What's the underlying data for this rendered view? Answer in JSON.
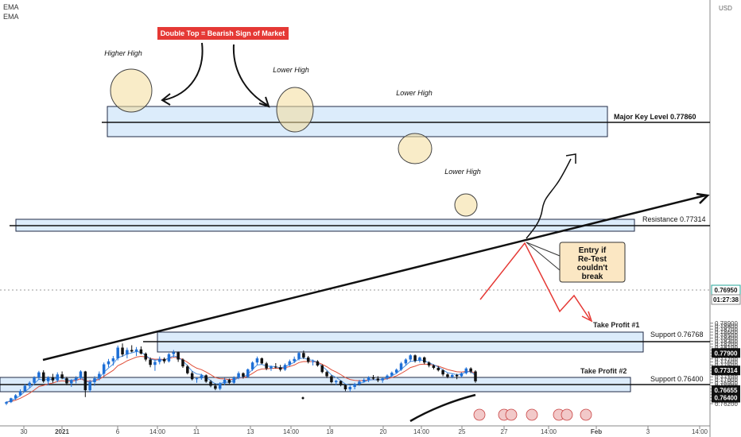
{
  "indicators": [
    "EMA",
    "EMA"
  ],
  "currency": "USD",
  "chart_data": {
    "type": "candlestick",
    "instrument_quote_currency": "USD",
    "x_ticks": [
      "30",
      "2021",
      "6",
      "14:00",
      "11",
      "13",
      "14:00",
      "18",
      "20",
      "14:00",
      "25",
      "27",
      "14:00",
      "Feb",
      "3",
      "14:00"
    ],
    "y_ticks": [
      "0.76200",
      "0.76300",
      "0.76400",
      "0.76500",
      "0.76600",
      "0.76700",
      "0.76800",
      "0.76900",
      "0.77000",
      "0.77100",
      "0.77200",
      "0.77300",
      "0.77400",
      "0.77500",
      "0.77600",
      "0.77700",
      "0.77800",
      "0.77900",
      "0.78000",
      "0.78100",
      "0.78200",
      "0.78300",
      "0.78400",
      "0.78500",
      "0.78600",
      "0.78700",
      "0.78800",
      "0.78900"
    ],
    "ylim": [
      0.7615,
      0.7893
    ],
    "price_tags": [
      {
        "label": "0.77900",
        "price": 0.779,
        "style": "dark"
      },
      {
        "label": "0.77314",
        "price": 0.77314,
        "style": "dark"
      },
      {
        "label": "0.76950",
        "price": 0.7695,
        "style": "current"
      },
      {
        "label": "01:27:38",
        "price": 0.7688,
        "style": "countdown"
      },
      {
        "label": "0.76655",
        "price": 0.76655,
        "style": "dark"
      },
      {
        "label": "0.76400",
        "price": 0.764,
        "style": "dark"
      }
    ],
    "candles": [
      [
        0.762,
        0.7628,
        0.7615,
        0.7625
      ],
      [
        0.7625,
        0.764,
        0.7622,
        0.7638
      ],
      [
        0.7638,
        0.7652,
        0.7632,
        0.7648
      ],
      [
        0.7648,
        0.7668,
        0.7645,
        0.7662
      ],
      [
        0.7662,
        0.7685,
        0.7658,
        0.768
      ],
      [
        0.768,
        0.7695,
        0.7672,
        0.769
      ],
      [
        0.769,
        0.7712,
        0.7686,
        0.7708
      ],
      [
        0.7708,
        0.773,
        0.77,
        0.7725
      ],
      [
        0.7725,
        0.7732,
        0.769,
        0.7695
      ],
      [
        0.7695,
        0.7712,
        0.7682,
        0.7708
      ],
      [
        0.7708,
        0.772,
        0.769,
        0.7698
      ],
      [
        0.7698,
        0.7725,
        0.7692,
        0.7718
      ],
      [
        0.7718,
        0.7728,
        0.7702,
        0.7705
      ],
      [
        0.7705,
        0.771,
        0.7682,
        0.7688
      ],
      [
        0.7688,
        0.7702,
        0.7676,
        0.7698
      ],
      [
        0.7698,
        0.7712,
        0.7688,
        0.7706
      ],
      [
        0.7706,
        0.7732,
        0.77,
        0.7728
      ],
      [
        0.7728,
        0.773,
        0.7642,
        0.7665
      ],
      [
        0.7665,
        0.77,
        0.7658,
        0.7692
      ],
      [
        0.7692,
        0.7712,
        0.768,
        0.7705
      ],
      [
        0.7705,
        0.7728,
        0.7698,
        0.772
      ],
      [
        0.772,
        0.7758,
        0.7712,
        0.7752
      ],
      [
        0.7752,
        0.777,
        0.7742,
        0.7762
      ],
      [
        0.7762,
        0.778,
        0.7748,
        0.7772
      ],
      [
        0.7772,
        0.7815,
        0.7765,
        0.7808
      ],
      [
        0.7808,
        0.7822,
        0.7778,
        0.7785
      ],
      [
        0.7785,
        0.7808,
        0.7772,
        0.78
      ],
      [
        0.78,
        0.7816,
        0.7792,
        0.7795
      ],
      [
        0.7795,
        0.781,
        0.778,
        0.7802
      ],
      [
        0.7802,
        0.7812,
        0.7785,
        0.7788
      ],
      [
        0.7788,
        0.7792,
        0.7762,
        0.7768
      ],
      [
        0.7768,
        0.7775,
        0.7742,
        0.775
      ],
      [
        0.775,
        0.7768,
        0.773,
        0.776
      ],
      [
        0.776,
        0.7778,
        0.7752,
        0.777
      ],
      [
        0.777,
        0.7775,
        0.7755,
        0.7762
      ],
      [
        0.7762,
        0.779,
        0.7758,
        0.7786
      ],
      [
        0.7786,
        0.78,
        0.7775,
        0.7792
      ],
      [
        0.7792,
        0.7795,
        0.776,
        0.7768
      ],
      [
        0.7768,
        0.7772,
        0.774,
        0.7745
      ],
      [
        0.7745,
        0.775,
        0.7718,
        0.7722
      ],
      [
        0.7722,
        0.7728,
        0.7698,
        0.7702
      ],
      [
        0.7702,
        0.7708,
        0.769,
        0.7705
      ],
      [
        0.7705,
        0.772,
        0.77,
        0.7715
      ],
      [
        0.7715,
        0.7718,
        0.769,
        0.7694
      ],
      [
        0.7694,
        0.77,
        0.7675,
        0.768
      ],
      [
        0.768,
        0.7688,
        0.7665,
        0.767
      ],
      [
        0.767,
        0.7692,
        0.7665,
        0.7688
      ],
      [
        0.7688,
        0.7706,
        0.7682,
        0.77
      ],
      [
        0.77,
        0.7704,
        0.7686,
        0.769
      ],
      [
        0.769,
        0.7712,
        0.7686,
        0.7708
      ],
      [
        0.7708,
        0.7728,
        0.7702,
        0.7722
      ],
      [
        0.7722,
        0.7725,
        0.7704,
        0.771
      ],
      [
        0.771,
        0.7738,
        0.7706,
        0.7735
      ],
      [
        0.7735,
        0.7762,
        0.773,
        0.7758
      ],
      [
        0.7758,
        0.7778,
        0.775,
        0.7772
      ],
      [
        0.7772,
        0.7775,
        0.7752,
        0.7755
      ],
      [
        0.7755,
        0.776,
        0.7732,
        0.7738
      ],
      [
        0.7738,
        0.7748,
        0.773,
        0.7744
      ],
      [
        0.7744,
        0.7756,
        0.7738,
        0.7742
      ],
      [
        0.7742,
        0.775,
        0.7728,
        0.7734
      ],
      [
        0.7734,
        0.7755,
        0.773,
        0.775
      ],
      [
        0.775,
        0.7768,
        0.7745,
        0.7762
      ],
      [
        0.7762,
        0.7778,
        0.7756,
        0.777
      ],
      [
        0.777,
        0.7795,
        0.7765,
        0.779
      ],
      [
        0.779,
        0.7798,
        0.777,
        0.7775
      ],
      [
        0.7775,
        0.778,
        0.7755,
        0.776
      ],
      [
        0.776,
        0.7768,
        0.7748,
        0.7762
      ],
      [
        0.7762,
        0.7766,
        0.7744,
        0.7748
      ],
      [
        0.7748,
        0.7752,
        0.7722,
        0.7726
      ],
      [
        0.7726,
        0.773,
        0.7706,
        0.7712
      ],
      [
        0.7712,
        0.7716,
        0.7688,
        0.7692
      ],
      [
        0.7692,
        0.77,
        0.7682,
        0.7696
      ],
      [
        0.7696,
        0.7698,
        0.7678,
        0.7682
      ],
      [
        0.7682,
        0.7685,
        0.7662,
        0.7668
      ],
      [
        0.7668,
        0.768,
        0.766,
        0.7676
      ],
      [
        0.7676,
        0.769,
        0.7668,
        0.7685
      ],
      [
        0.7685,
        0.77,
        0.768,
        0.7694
      ],
      [
        0.7694,
        0.7705,
        0.769,
        0.77
      ],
      [
        0.77,
        0.7712,
        0.7692,
        0.7708
      ],
      [
        0.7708,
        0.7716,
        0.77,
        0.7704
      ],
      [
        0.7704,
        0.7712,
        0.7692,
        0.7698
      ],
      [
        0.7698,
        0.7708,
        0.769,
        0.7705
      ],
      [
        0.7705,
        0.7718,
        0.77,
        0.7714
      ],
      [
        0.7714,
        0.7728,
        0.7708,
        0.7724
      ],
      [
        0.7724,
        0.7738,
        0.772,
        0.7734
      ],
      [
        0.7734,
        0.776,
        0.773,
        0.7755
      ],
      [
        0.7755,
        0.7772,
        0.7748,
        0.7768
      ],
      [
        0.7768,
        0.7786,
        0.776,
        0.7782
      ],
      [
        0.7782,
        0.7785,
        0.7758,
        0.7764
      ],
      [
        0.7764,
        0.7778,
        0.7758,
        0.7775
      ],
      [
        0.7775,
        0.7778,
        0.7752,
        0.7758
      ],
      [
        0.7758,
        0.7762,
        0.7742,
        0.7748
      ],
      [
        0.7748,
        0.7752,
        0.7735,
        0.774
      ],
      [
        0.774,
        0.7746,
        0.7728,
        0.7732
      ],
      [
        0.7732,
        0.7736,
        0.7712,
        0.7718
      ],
      [
        0.7718,
        0.7722,
        0.7705,
        0.771
      ],
      [
        0.771,
        0.772,
        0.7705,
        0.7716
      ],
      [
        0.7716,
        0.772,
        0.7702,
        0.7712
      ],
      [
        0.7712,
        0.7725,
        0.7708,
        0.7722
      ],
      [
        0.7722,
        0.7742,
        0.7718,
        0.7738
      ],
      [
        0.7738,
        0.7742,
        0.7722,
        0.7728
      ],
      [
        0.7728,
        0.7732,
        0.769,
        0.7695
      ]
    ]
  },
  "annotations": {
    "double_top": "Double Top = Bearish Sign of Market",
    "higher_high": "Higher High",
    "lower_high_1": "Lower High",
    "lower_high_2": "Lower High",
    "lower_high_3": "Lower High",
    "major_key_level": "Major Key Level 0.77860",
    "resistance": "Resistance 0.77314",
    "support_1": "Support 0.76768",
    "support_2": "Support 0.76400",
    "take_profit_1": "Take Profit #1",
    "take_profit_2": "Take Profit #2",
    "entry_note": [
      "Entry if",
      "Re-Test",
      "couldn't",
      "break"
    ]
  },
  "colors": {
    "bull_candle": "#1e6fd6",
    "bear_candle": "#111111",
    "ema_fast": "#4a8fe0",
    "ema_slow": "#e0503a",
    "zone_fill": "#dcecfb",
    "zone_stroke": "#1f2a44",
    "red_banner": "#e53935",
    "entry_box": "#fbe7c3",
    "current_price": "#26a69a"
  }
}
